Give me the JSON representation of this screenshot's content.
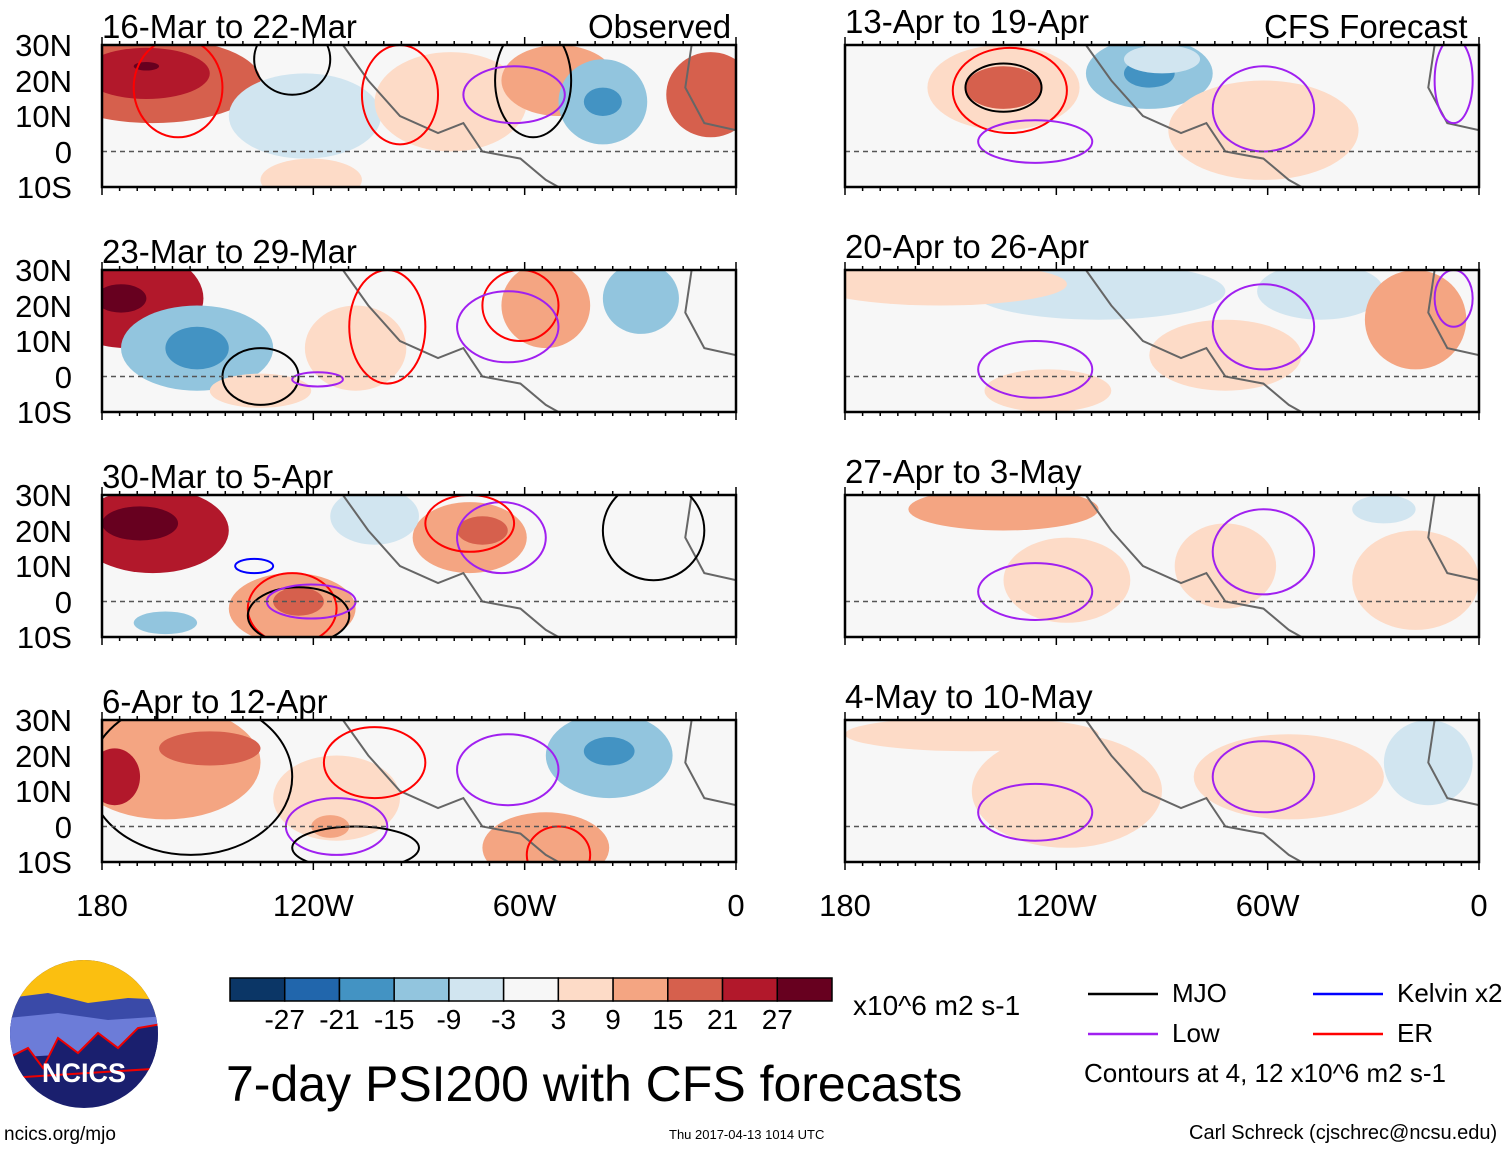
{
  "title": "7-day PSI200 with CFS forecasts",
  "observed_label": "Observed",
  "forecast_label": "CFS Forecast",
  "panels_observed": [
    "16-Mar to 22-Mar",
    "23-Mar to 29-Mar",
    "30-Mar to 5-Apr",
    "6-Apr to 12-Apr"
  ],
  "panels_forecast": [
    "13-Apr to 19-Apr",
    "20-Apr to 26-Apr",
    "27-Apr to 3-May",
    "4-May to 10-May"
  ],
  "lat_labels": [
    "30N",
    "20N",
    "10N",
    "0",
    "10S"
  ],
  "lon_labels": [
    "180",
    "120W",
    "60W",
    "0"
  ],
  "colorbar": {
    "colors": [
      "#0b3666",
      "#2166ac",
      "#4393c3",
      "#92c5de",
      "#d1e5f0",
      "#f7f7f7",
      "#fddbc7",
      "#f4a582",
      "#d6604d",
      "#b2182b",
      "#67001f"
    ],
    "labels": [
      "-27",
      "-21",
      "-15",
      "-9",
      "-3",
      "3",
      "9",
      "15",
      "21",
      "27"
    ],
    "units": "x10^6 m2 s-1"
  },
  "legend": {
    "items": [
      {
        "label": "MJO",
        "color": "#000000"
      },
      {
        "label": "Kelvin x2",
        "color": "#0000ff"
      },
      {
        "label": "Low",
        "color": "#a020f0"
      },
      {
        "label": "ER",
        "color": "#ff0000"
      }
    ],
    "contours_note": "Contours at 4, 12 x10^6 m2 s-1"
  },
  "logo_text": "NCICS",
  "footer": {
    "url": "ncics.org/mjo",
    "timestamp": "Thu 2017-04-13 1014 UTC",
    "author": "Carl Schreck (cjschrec@ncsu.edu)"
  }
}
